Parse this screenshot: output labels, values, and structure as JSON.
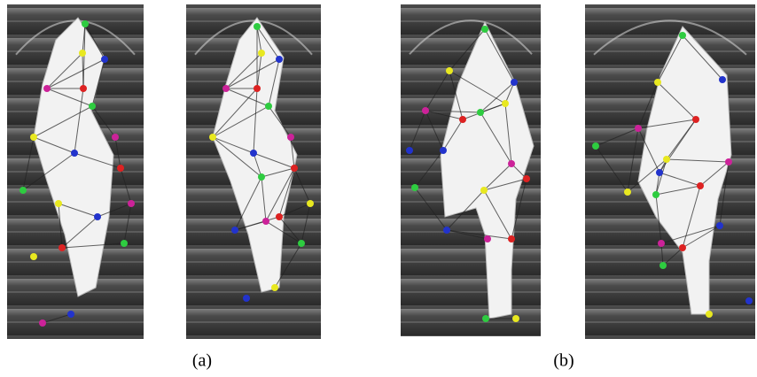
{
  "figure": {
    "captions": [
      "(a)",
      "(b)"
    ]
  }
}
